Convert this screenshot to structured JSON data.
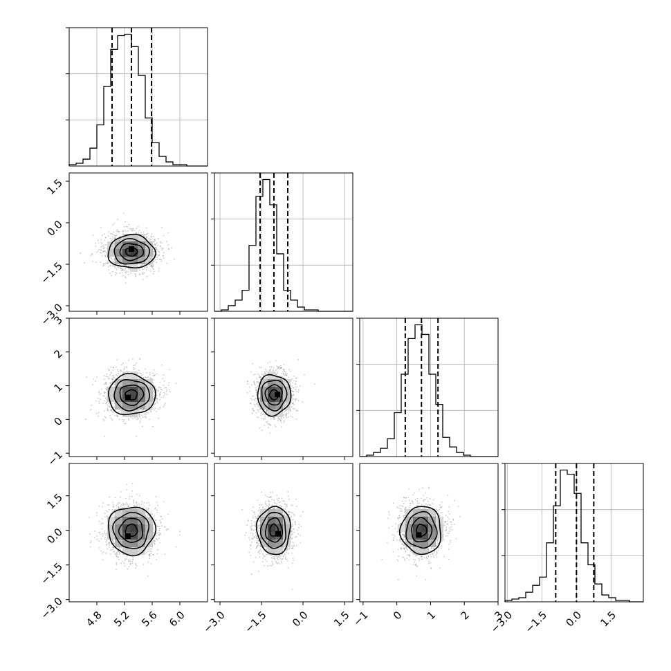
{
  "chart_data": {
    "type": "corner",
    "grid": true,
    "parameters": [
      {
        "range": [
          4.4,
          6.4
        ],
        "ticks": [
          4.8,
          5.2,
          5.6,
          6.0
        ],
        "tick_labels": [
          "4.8",
          "5.2",
          "5.6",
          "6.0"
        ],
        "quantiles": [
          5.02,
          5.3,
          5.59
        ],
        "histogram": {
          "bin_start": 4.4,
          "bin_width": 0.1,
          "counts": [
            1,
            2,
            5,
            13,
            30,
            58,
            85,
            95,
            96,
            87,
            66,
            35,
            17,
            7,
            3,
            1,
            1,
            0,
            0,
            0
          ]
        }
      },
      {
        "range": [
          -3.2,
          1.8
        ],
        "ticks": [
          -3.0,
          -1.5,
          0.0,
          1.5
        ],
        "tick_labels": [
          "−3.0",
          "−1.5",
          "0.0",
          "1.5"
        ],
        "quantiles": [
          -1.55,
          -1.05,
          -0.55
        ],
        "histogram": {
          "bin_start": -3.2,
          "bin_width": 0.25,
          "counts": [
            0,
            1,
            4,
            8,
            15,
            47,
            82,
            94,
            76,
            41,
            15,
            8,
            3,
            1,
            1,
            0,
            0,
            0,
            0,
            0
          ]
        }
      },
      {
        "range": [
          -1.1,
          3.0
        ],
        "ticks": [
          -1,
          0,
          1,
          2,
          3
        ],
        "tick_labels": [
          "−1",
          "0",
          "1",
          "2",
          "3"
        ],
        "quantiles": [
          0.25,
          0.73,
          1.22
        ],
        "histogram": {
          "bin_start": -1.1,
          "bin_width": 0.205,
          "counts": [
            0,
            1,
            3,
            6,
            13,
            32,
            60,
            86,
            96,
            89,
            60,
            38,
            14,
            7,
            3,
            1,
            0,
            0,
            0,
            0
          ]
        }
      },
      {
        "range": [
          -3.1,
          2.9
        ],
        "ticks": [
          -3.0,
          -1.5,
          0.0,
          1.5
        ],
        "tick_labels": [
          "−3.0",
          "−1.5",
          "0.0",
          "1.5"
        ],
        "quantiles": [
          -0.9,
          0.0,
          0.75
        ],
        "histogram": {
          "bin_start": -3.1,
          "bin_width": 0.3,
          "counts": [
            1,
            2,
            3,
            7,
            12,
            18,
            43,
            70,
            96,
            93,
            79,
            43,
            27,
            13,
            5,
            3,
            1,
            1,
            0,
            0
          ]
        }
      }
    ],
    "joint_distributions": [
      {
        "x": 0,
        "y": 1,
        "center": [
          5.3,
          -1.05
        ],
        "sigma": [
          0.17,
          0.3
        ],
        "peak": [
          5.3,
          -0.95
        ],
        "points": 1400
      },
      {
        "x": 0,
        "y": 2,
        "center": [
          5.3,
          0.73
        ],
        "sigma": [
          0.17,
          0.3
        ],
        "peak": [
          5.25,
          0.65
        ],
        "points": 1400
      },
      {
        "x": 1,
        "y": 2,
        "center": [
          -1.05,
          0.73
        ],
        "sigma": [
          0.3,
          0.3
        ],
        "peak": [
          -0.92,
          0.74
        ],
        "points": 1400
      },
      {
        "x": 0,
        "y": 3,
        "center": [
          5.3,
          0.0
        ],
        "sigma": [
          0.17,
          0.52
        ],
        "peak": [
          5.25,
          -0.25
        ],
        "points": 1400
      },
      {
        "x": 1,
        "y": 3,
        "center": [
          -1.05,
          0.0
        ],
        "sigma": [
          0.3,
          0.52
        ],
        "peak": [
          -0.9,
          -0.15
        ],
        "points": 1400
      },
      {
        "x": 2,
        "y": 3,
        "center": [
          0.73,
          0.0
        ],
        "sigma": [
          0.3,
          0.52
        ],
        "peak": [
          0.65,
          -0.2
        ],
        "points": 1400
      }
    ],
    "contour_levels": [
      0.4,
      0.7,
      0.9
    ],
    "colors": {
      "axis": "#000000",
      "grid": "#b0b0b0",
      "scatter": "#9a9a9a",
      "contour": "#000000"
    }
  }
}
